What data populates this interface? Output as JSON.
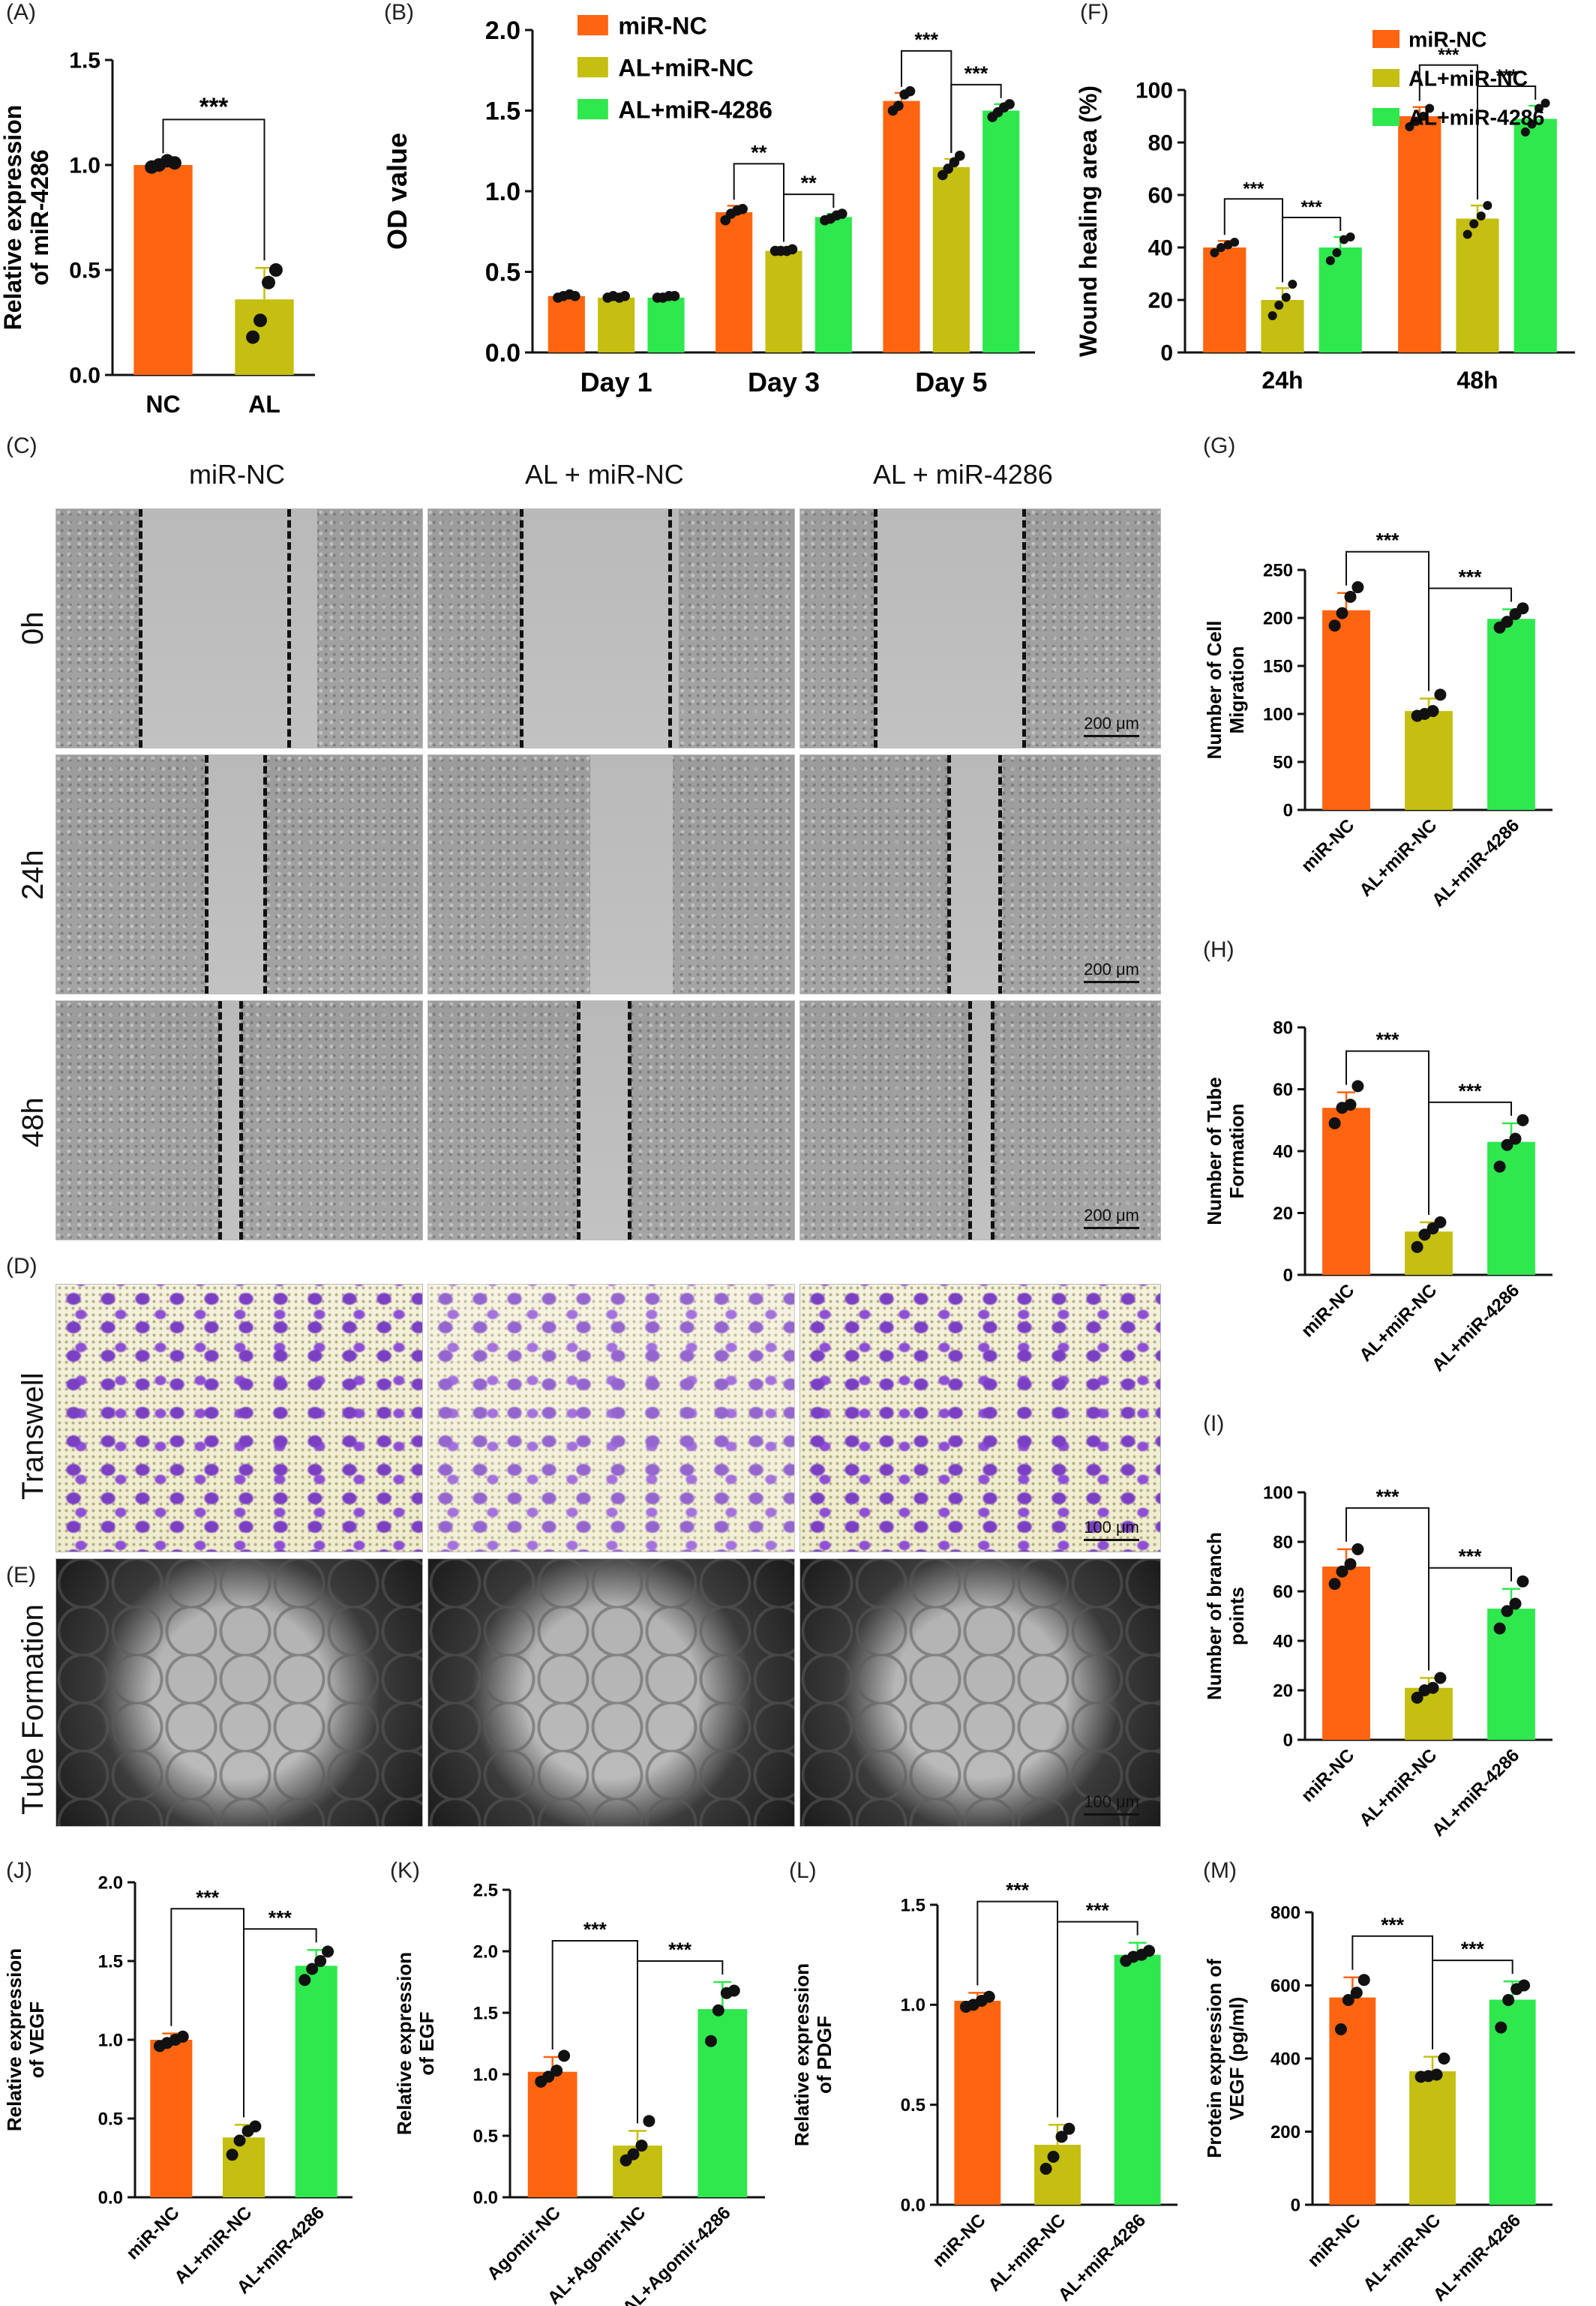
{
  "colors": {
    "orange": "#FF6410",
    "olive": "#C4BF10",
    "green": "#2EE84E",
    "dot": "#111111"
  },
  "panel_labels": {
    "A": "(A)",
    "B": "(B)",
    "C": "(C)",
    "D": "(D)",
    "E": "(E)",
    "F": "(F)",
    "G": "(G)",
    "H": "(H)",
    "I": "(I)",
    "J": "(J)",
    "K": "(K)",
    "L": "(L)",
    "M": "(M)"
  },
  "images": {
    "columns": [
      "miR-NC",
      "AL + miR-NC",
      "AL + miR-4286"
    ],
    "rows": [
      "0h",
      "24h",
      "48h",
      "Transwell",
      "Tube Formation"
    ],
    "scale_200": "200 μm",
    "scale_100": "100 μm"
  },
  "chart_data": [
    {
      "id": "A",
      "type": "bar",
      "ylabel": "Relative expression\nof miR-4286",
      "categories": [
        "NC",
        "AL"
      ],
      "values": [
        1.0,
        0.36
      ],
      "errors": [
        0.02,
        0.15
      ],
      "ylim": [
        0,
        1.5
      ],
      "yticks": [
        "0.0",
        "0.5",
        "1.0",
        "1.5"
      ],
      "colors": [
        "orange",
        "olive"
      ],
      "points": [
        [
          0.99,
          1.0,
          1.02,
          1.01
        ],
        [
          0.18,
          0.26,
          0.44,
          0.5
        ]
      ],
      "sig": [
        {
          "from": 0,
          "to": 1,
          "label": "***"
        }
      ]
    },
    {
      "id": "B",
      "type": "bar",
      "ylabel": "OD value",
      "categories": [
        "Day 1",
        "Day 3",
        "Day 5"
      ],
      "series": [
        {
          "name": "miR-NC",
          "color": "orange",
          "values": [
            0.35,
            0.87,
            1.56
          ],
          "errors": [
            0.02,
            0.04,
            0.05
          ],
          "points": [
            [
              0.34,
              0.35,
              0.36,
              0.35
            ],
            [
              0.82,
              0.86,
              0.88,
              0.89
            ],
            [
              1.5,
              1.53,
              1.6,
              1.62
            ]
          ]
        },
        {
          "name": "AL+miR-NC",
          "color": "olive",
          "values": [
            0.34,
            0.63,
            1.15
          ],
          "errors": [
            0.01,
            0.02,
            0.05
          ],
          "points": [
            [
              0.34,
              0.35,
              0.34,
              0.35
            ],
            [
              0.63,
              0.63,
              0.63,
              0.64
            ],
            [
              1.1,
              1.14,
              1.18,
              1.22
            ]
          ]
        },
        {
          "name": "AL+miR-4286",
          "color": "green",
          "values": [
            0.34,
            0.84,
            1.5
          ],
          "errors": [
            0.01,
            0.02,
            0.04
          ],
          "points": [
            [
              0.34,
              0.34,
              0.35,
              0.35
            ],
            [
              0.82,
              0.83,
              0.85,
              0.86
            ],
            [
              1.46,
              1.49,
              1.52,
              1.54
            ]
          ]
        }
      ],
      "ylim": [
        0,
        2.0
      ],
      "yticks": [
        "0.0",
        "0.5",
        "1.0",
        "1.5",
        "2.0"
      ],
      "sig": [
        {
          "group": 1,
          "from": 0,
          "to": 1,
          "label": "**"
        },
        {
          "group": 1,
          "from": 1,
          "to": 2,
          "label": "**"
        },
        {
          "group": 2,
          "from": 0,
          "to": 1,
          "label": "***"
        },
        {
          "group": 2,
          "from": 1,
          "to": 2,
          "label": "***"
        }
      ]
    },
    {
      "id": "F",
      "type": "bar",
      "ylabel": "Wound healing area  (%)",
      "categories": [
        "24h",
        "48h"
      ],
      "series": [
        {
          "name": "miR-NC",
          "color": "orange",
          "values": [
            40,
            90
          ],
          "errors": [
            2.5,
            3.5
          ],
          "points": [
            [
              38,
              40,
              41,
              42
            ],
            [
              86,
              88,
              90,
              93
            ]
          ]
        },
        {
          "name": "AL+miR-NC",
          "color": "olive",
          "values": [
            20,
            51
          ],
          "errors": [
            4.5,
            5
          ],
          "points": [
            [
              14,
              18,
              21,
              26
            ],
            [
              45,
              49,
              52,
              56
            ]
          ]
        },
        {
          "name": "AL+miR-4286",
          "color": "green",
          "values": [
            40,
            89
          ],
          "errors": [
            4,
            5
          ],
          "points": [
            [
              35,
              38,
              43,
              44
            ],
            [
              84,
              87,
              93,
              95
            ]
          ]
        }
      ],
      "ylim": [
        0,
        100
      ],
      "yticks": [
        "0",
        "20",
        "40",
        "60",
        "80",
        "100"
      ],
      "sig": [
        {
          "group": 0,
          "from": 0,
          "to": 1,
          "label": "***"
        },
        {
          "group": 0,
          "from": 1,
          "to": 2,
          "label": "***"
        },
        {
          "group": 1,
          "from": 0,
          "to": 1,
          "label": "***"
        },
        {
          "group": 1,
          "from": 1,
          "to": 2,
          "label": "***"
        }
      ]
    },
    {
      "id": "G",
      "type": "bar",
      "ylabel": "Number of Cell\nMigration",
      "categories": [
        "miR-NC",
        "AL+miR-NC",
        "AL+miR-4286"
      ],
      "values": [
        208,
        103,
        199
      ],
      "errors": [
        18,
        13,
        10
      ],
      "ylim": [
        0,
        250
      ],
      "yticks": [
        "0",
        "50",
        "100",
        "150",
        "200",
        "250"
      ],
      "colors": [
        "orange",
        "olive",
        "green"
      ],
      "points": [
        [
          192,
          205,
          222,
          232
        ],
        [
          98,
          100,
          103,
          120
        ],
        [
          190,
          196,
          204,
          210
        ]
      ],
      "sig": [
        {
          "from": 0,
          "to": 1,
          "label": "***"
        },
        {
          "from": 1,
          "to": 2,
          "label": "***"
        }
      ]
    },
    {
      "id": "H",
      "type": "bar",
      "ylabel": "Number of Tube\nFormation",
      "categories": [
        "miR-NC",
        "AL+miR-NC",
        "AL+miR-4286"
      ],
      "values": [
        54,
        14,
        43
      ],
      "errors": [
        5,
        3,
        6
      ],
      "ylim": [
        0,
        80
      ],
      "yticks": [
        "0",
        "20",
        "40",
        "60",
        "80"
      ],
      "colors": [
        "orange",
        "olive",
        "green"
      ],
      "points": [
        [
          49,
          54,
          55,
          61
        ],
        [
          9,
          13,
          15,
          17
        ],
        [
          35,
          42,
          44,
          50
        ]
      ],
      "sig": [
        {
          "from": 0,
          "to": 1,
          "label": "***"
        },
        {
          "from": 1,
          "to": 2,
          "label": "***"
        }
      ]
    },
    {
      "id": "I",
      "type": "bar",
      "ylabel": "Number of branch\npoints",
      "categories": [
        "miR-NC",
        "AL+miR-NC",
        "AL+miR-4286"
      ],
      "values": [
        70,
        21,
        53
      ],
      "errors": [
        7,
        4,
        8
      ],
      "ylim": [
        0,
        100
      ],
      "yticks": [
        "0",
        "20",
        "40",
        "60",
        "80",
        "100"
      ],
      "colors": [
        "orange",
        "olive",
        "green"
      ],
      "points": [
        [
          63,
          68,
          71,
          77
        ],
        [
          17,
          20,
          21,
          25
        ],
        [
          45,
          52,
          55,
          64
        ]
      ],
      "sig": [
        {
          "from": 0,
          "to": 1,
          "label": "***"
        },
        {
          "from": 1,
          "to": 2,
          "label": "***"
        }
      ]
    },
    {
      "id": "J",
      "type": "bar",
      "ylabel": "Relative expression\nof VEGF",
      "categories": [
        "miR-NC",
        "AL+miR-NC",
        "AL+miR-4286"
      ],
      "values": [
        1.0,
        0.38,
        1.47
      ],
      "errors": [
        0.04,
        0.08,
        0.1
      ],
      "ylim": [
        0,
        2.0
      ],
      "yticks": [
        "0.0",
        "0.5",
        "1.0",
        "1.5",
        "2.0"
      ],
      "colors": [
        "orange",
        "olive",
        "green"
      ],
      "points": [
        [
          0.96,
          0.98,
          1.0,
          1.02
        ],
        [
          0.27,
          0.36,
          0.42,
          0.45
        ],
        [
          1.38,
          1.45,
          1.5,
          1.56
        ]
      ],
      "sig": [
        {
          "from": 0,
          "to": 1,
          "label": "***"
        },
        {
          "from": 1,
          "to": 2,
          "label": "***"
        }
      ]
    },
    {
      "id": "K",
      "type": "bar",
      "ylabel": "Relative expression\nof EGF",
      "categories": [
        "Agomir-NC",
        "AL+Agomir-NC",
        "AL+Agomir-4286"
      ],
      "values": [
        1.02,
        0.42,
        1.53
      ],
      "errors": [
        0.12,
        0.12,
        0.22
      ],
      "ylim": [
        0,
        2.5
      ],
      "yticks": [
        "0.0",
        "0.5",
        "1.0",
        "1.5",
        "2.0",
        "2.5"
      ],
      "colors": [
        "orange",
        "olive",
        "green"
      ],
      "points": [
        [
          0.94,
          0.98,
          1.03,
          1.15
        ],
        [
          0.3,
          0.35,
          0.42,
          0.62
        ],
        [
          1.27,
          1.52,
          1.66,
          1.68
        ]
      ],
      "sig": [
        {
          "from": 0,
          "to": 1,
          "label": "***"
        },
        {
          "from": 1,
          "to": 2,
          "label": "***"
        }
      ]
    },
    {
      "id": "L",
      "type": "bar",
      "ylabel": "Relative expression\nof PDGF",
      "categories": [
        "miR-NC",
        "AL+miR-NC",
        "AL+miR-4286"
      ],
      "values": [
        1.02,
        0.3,
        1.25
      ],
      "errors": [
        0.04,
        0.1,
        0.06
      ],
      "ylim": [
        0,
        1.5
      ],
      "yticks": [
        "0.0",
        "0.5",
        "1.0",
        "1.5"
      ],
      "colors": [
        "orange",
        "olive",
        "green"
      ],
      "points": [
        [
          0.99,
          1.0,
          1.02,
          1.04
        ],
        [
          0.18,
          0.24,
          0.34,
          0.38
        ],
        [
          1.22,
          1.24,
          1.25,
          1.27
        ]
      ],
      "sig": [
        {
          "from": 0,
          "to": 1,
          "label": "***"
        },
        {
          "from": 1,
          "to": 2,
          "label": "***"
        }
      ]
    },
    {
      "id": "M",
      "type": "bar",
      "ylabel": "Protein expression of\nVEGF (pg/ml)",
      "categories": [
        "miR-NC",
        "AL+miR-NC",
        "AL+miR-4286"
      ],
      "values": [
        567,
        365,
        561
      ],
      "errors": [
        55,
        40,
        50
      ],
      "ylim": [
        0,
        800
      ],
      "yticks": [
        "0",
        "200",
        "400",
        "600",
        "800"
      ],
      "colors": [
        "orange",
        "olive",
        "green"
      ],
      "points": [
        [
          480,
          560,
          580,
          615
        ],
        [
          350,
          352,
          356,
          400
        ],
        [
          485,
          560,
          590,
          600
        ]
      ],
      "sig": [
        {
          "from": 0,
          "to": 1,
          "label": "***"
        },
        {
          "from": 1,
          "to": 2,
          "label": "***"
        }
      ]
    }
  ]
}
